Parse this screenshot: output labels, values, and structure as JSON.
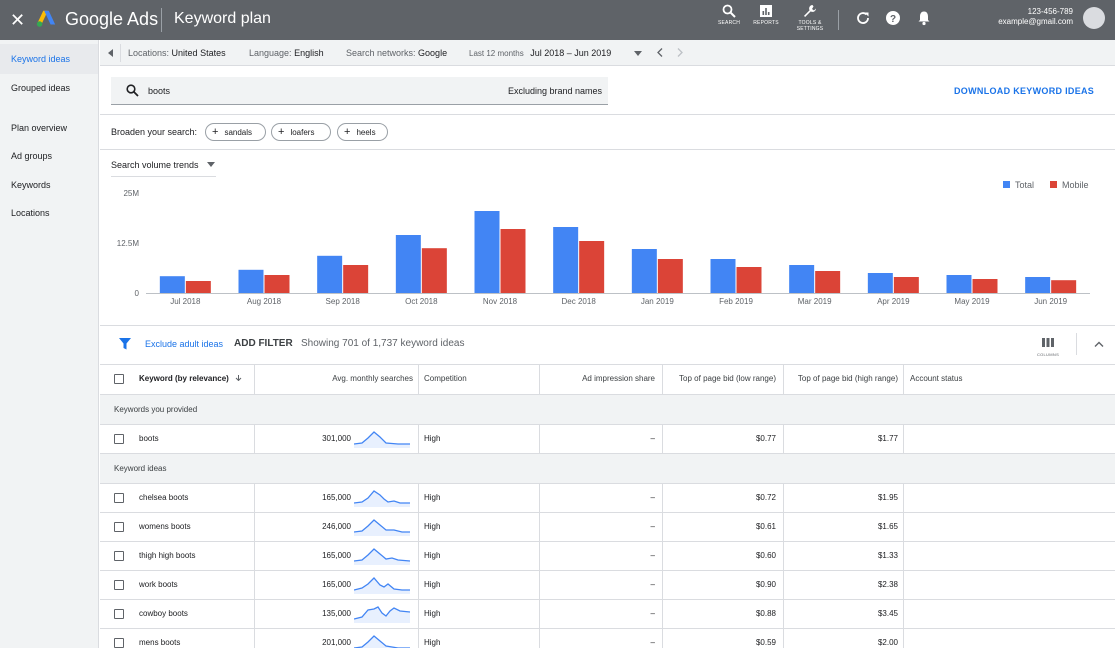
{
  "topbar": {
    "brand": "Google Ads",
    "title": "Keyword plan",
    "tools": [
      {
        "icon": "search-icon",
        "label": "SEARCH"
      },
      {
        "icon": "reports-icon",
        "label": "REPORTS"
      },
      {
        "icon": "wrench-icon",
        "label": "TOOLS &\nSETTINGS"
      }
    ],
    "account_id": "123-456-789",
    "account_email": "example@gmail.com"
  },
  "sidebar": {
    "items": [
      {
        "label": "Keyword ideas",
        "active": true
      },
      {
        "label": "Grouped ideas",
        "active": false
      },
      {
        "label": "Plan overview",
        "active": false
      },
      {
        "label": "Ad groups",
        "active": false
      },
      {
        "label": "Keywords",
        "active": false
      },
      {
        "label": "Locations",
        "active": false
      }
    ]
  },
  "filters": {
    "locations_label": "Locations:",
    "locations_value": "United States",
    "language_label": "Language:",
    "language_value": "English",
    "networks_label": "Search networks:",
    "networks_value": "Google",
    "period_label": "Last 12 months",
    "period_value": "Jul 2018 – Jun 2019"
  },
  "search": {
    "value": "boots",
    "excluding": "Excluding brand names",
    "download_label": "DOWNLOAD KEYWORD IDEAS"
  },
  "broaden": {
    "label": "Broaden your search:",
    "chips": [
      "sandals",
      "loafers",
      "heels"
    ]
  },
  "trend": {
    "dropdown": "Search volume trends"
  },
  "colors": {
    "total": "#4285f4",
    "mobile": "#db4437",
    "accent": "#1a73e8"
  },
  "chart_data": {
    "type": "bar",
    "categories": [
      "Jul 2018",
      "Aug 2018",
      "Sep 2018",
      "Oct 2018",
      "Nov 2018",
      "Dec 2018",
      "Jan 2019",
      "Feb 2019",
      "Mar 2019",
      "Apr 2019",
      "May 2019",
      "Jun 2019"
    ],
    "series": [
      {
        "name": "Total",
        "values": [
          4.2,
          5.8,
          9.3,
          14.5,
          20.5,
          16.5,
          11.0,
          8.5,
          7.0,
          5.0,
          4.5,
          4.0
        ]
      },
      {
        "name": "Mobile",
        "values": [
          3.0,
          4.5,
          7.0,
          11.2,
          16.0,
          13.0,
          8.5,
          6.5,
          5.5,
          4.0,
          3.5,
          3.2
        ]
      }
    ],
    "y_ticks": [
      "25M",
      "12.5M",
      "0"
    ],
    "ylim": [
      0,
      25
    ],
    "legend_position": "top-right",
    "grid": false
  },
  "table_toolbar": {
    "exclude_label": "Exclude adult ideas",
    "add_filter": "ADD FILTER",
    "showing": "Showing 701 of 1,737 keyword ideas",
    "columns_label": "COLUMNS"
  },
  "table": {
    "columns": {
      "keyword": "Keyword (by relevance)",
      "avg": "Avg. monthly searches",
      "competition": "Competition",
      "impression": "Ad impression share",
      "bid_low": "Top of page bid (low range)",
      "bid_high": "Top of page bid (high range)",
      "status": "Account status"
    },
    "section_provided": "Keywords you provided",
    "section_ideas": "Keyword ideas",
    "provided": [
      {
        "keyword": "boots",
        "avg": "301,000",
        "competition": "High",
        "impression": "–",
        "bid_low": "$0.77",
        "bid_high": "$1.77"
      }
    ],
    "ideas": [
      {
        "keyword": "chelsea boots",
        "avg": "165,000",
        "competition": "High",
        "impression": "–",
        "bid_low": "$0.72",
        "bid_high": "$1.95"
      },
      {
        "keyword": "womens boots",
        "avg": "246,000",
        "competition": "High",
        "impression": "–",
        "bid_low": "$0.61",
        "bid_high": "$1.65"
      },
      {
        "keyword": "thigh high boots",
        "avg": "165,000",
        "competition": "High",
        "impression": "–",
        "bid_low": "$0.60",
        "bid_high": "$1.33"
      },
      {
        "keyword": "work boots",
        "avg": "165,000",
        "competition": "High",
        "impression": "–",
        "bid_low": "$0.90",
        "bid_high": "$2.38"
      },
      {
        "keyword": "cowboy boots",
        "avg": "135,000",
        "competition": "High",
        "impression": "–",
        "bid_low": "$0.88",
        "bid_high": "$3.45"
      },
      {
        "keyword": "mens boots",
        "avg": "201,000",
        "competition": "High",
        "impression": "–",
        "bid_low": "$0.59",
        "bid_high": "$2.00"
      }
    ]
  }
}
